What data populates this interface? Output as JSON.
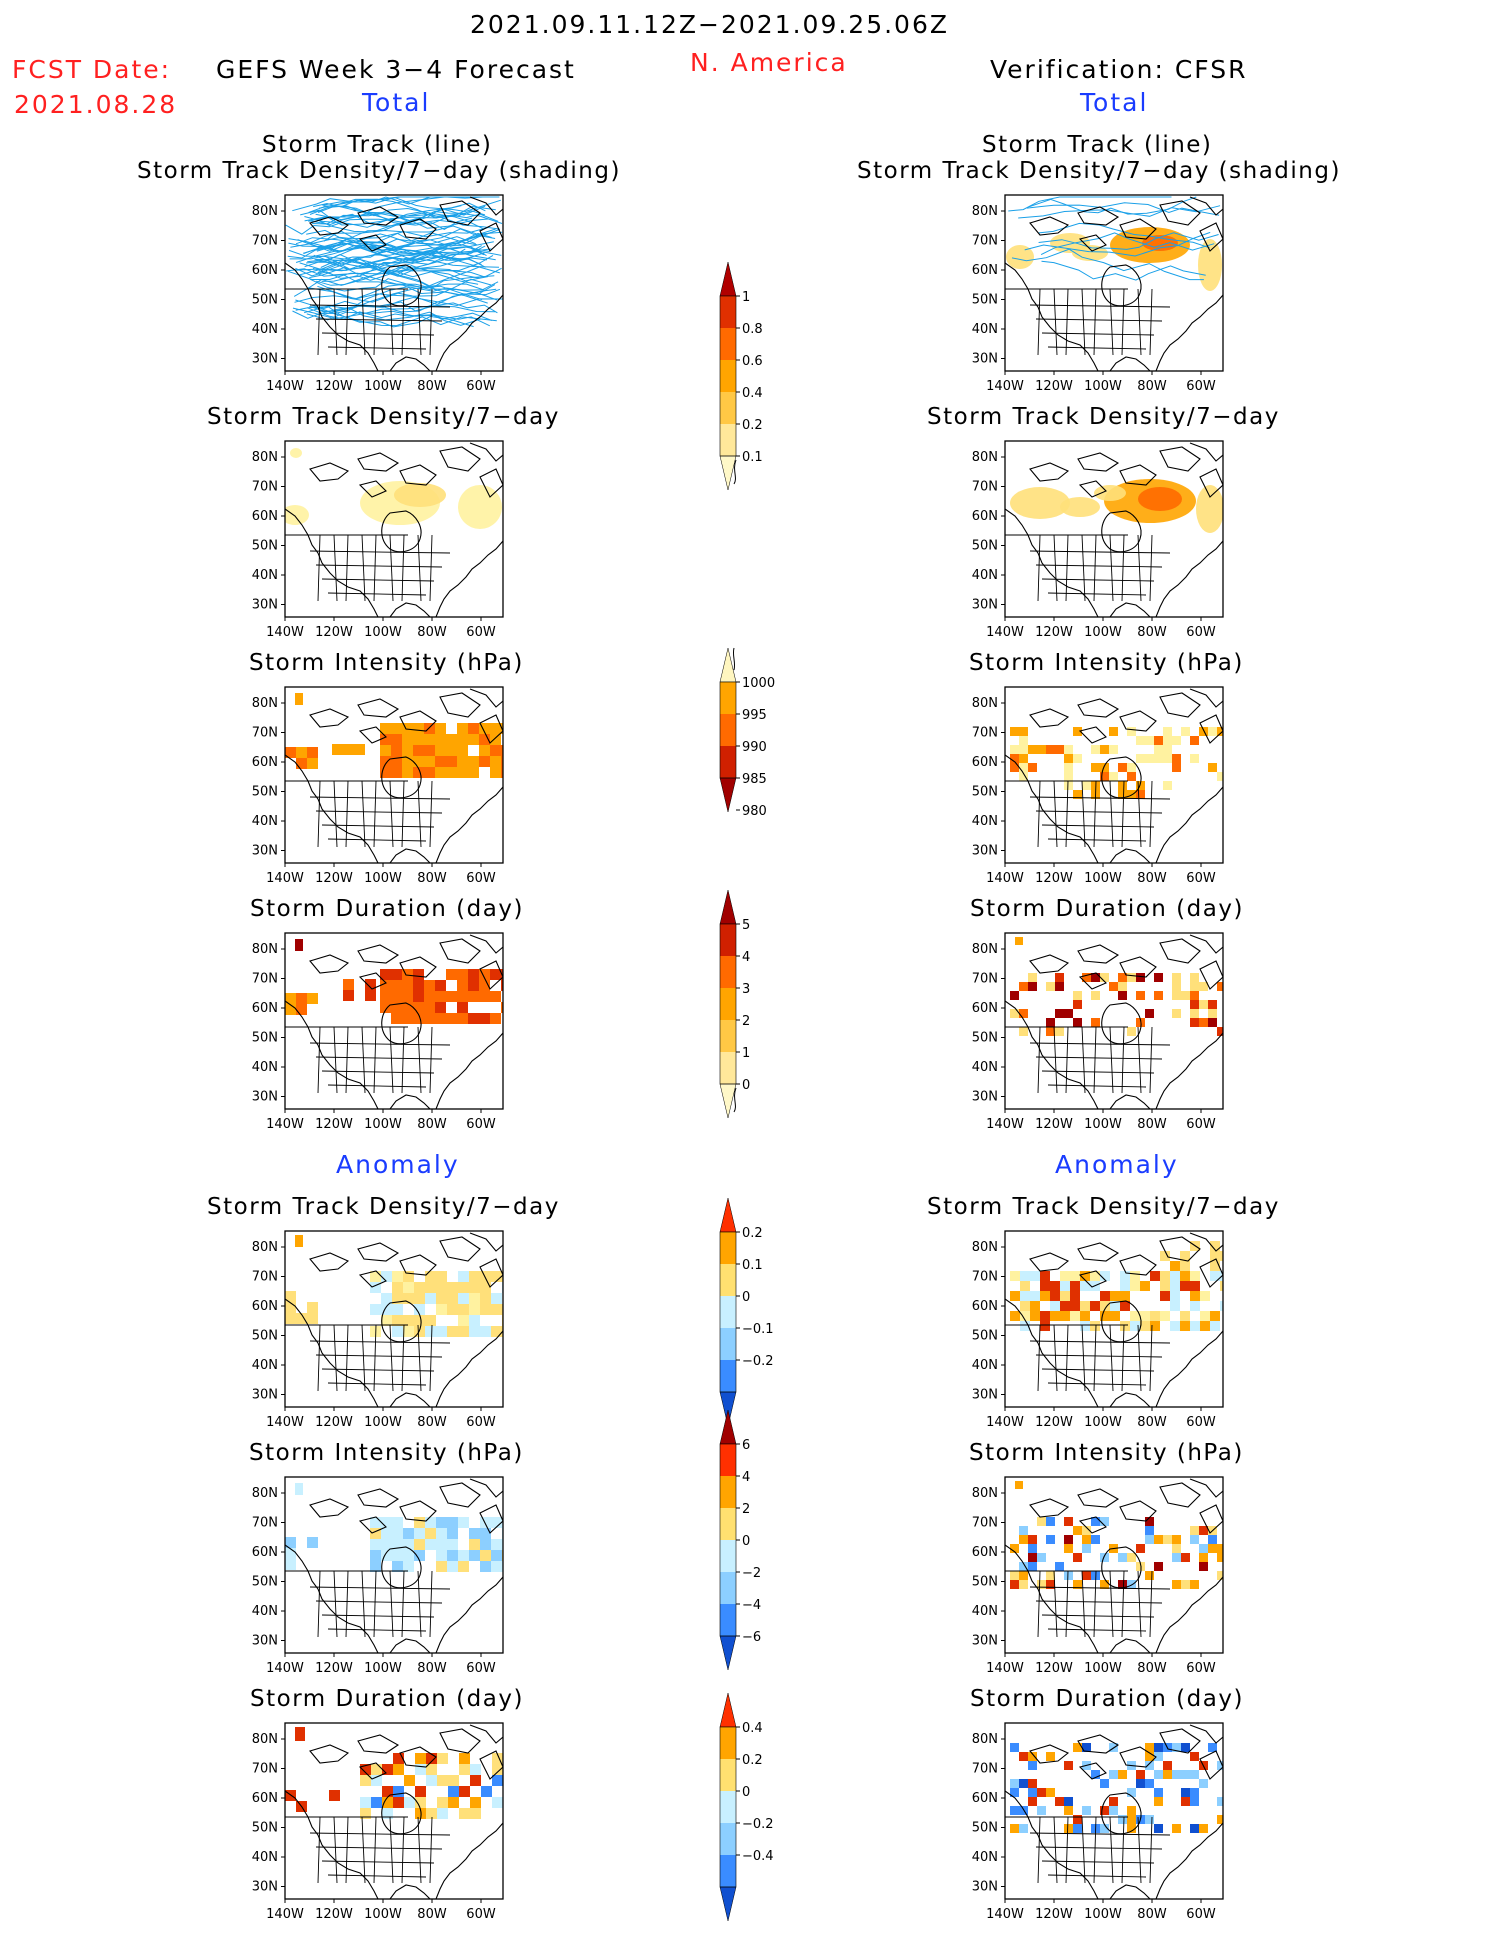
{
  "header": {
    "date_range": "2021.09.11.12Z−2021.09.25.06Z",
    "fcst_label": "FCST Date:",
    "fcst_date": "2021.08.28",
    "model": "GEFS Week 3−4 Forecast",
    "region": "N. America",
    "verification": "Verification: CFSR"
  },
  "sections": {
    "total_left": "Total",
    "total_right": "Total",
    "anomaly_left": "Anomaly",
    "anomaly_right": "Anomaly"
  },
  "panel_titles": {
    "track_line": "Storm Track (line)",
    "track_shading": "Storm Track Density/7−day (shading)",
    "density": "Storm Track Density/7−day",
    "intensity": "Storm Intensity (hPa)",
    "duration": "Storm Duration (day)"
  },
  "axes": {
    "lat_labels": [
      "80N",
      "70N",
      "60N",
      "50N",
      "40N",
      "30N"
    ],
    "lon_labels": [
      "140W",
      "120W",
      "100W",
      "80W",
      "60W"
    ]
  },
  "colorbars": {
    "density_total": {
      "labels": [
        "1",
        "0.8",
        "0.6",
        "0.4",
        "0.2",
        "0.1"
      ],
      "colors": [
        "#b00000",
        "#e03000",
        "#ff6a00",
        "#ffa500",
        "#ffc845",
        "#ffe89a",
        "#fff8c8"
      ]
    },
    "intensity_total": {
      "labels": [
        "1000",
        "995",
        "990",
        "985",
        "980"
      ],
      "colors": [
        "#fff6c0",
        "#ffa500",
        "#ff6a00",
        "#d02000",
        "#a00000"
      ]
    },
    "duration_total": {
      "labels": [
        "5",
        "4",
        "3",
        "2",
        "1",
        "0"
      ],
      "colors": [
        "#a00000",
        "#d02000",
        "#ff6a00",
        "#ffa500",
        "#ffc845",
        "#ffe89a",
        "#fff8c8"
      ]
    },
    "density_anom": {
      "labels": [
        "0.2",
        "0.1",
        "0",
        "−0.1",
        "−0.2"
      ],
      "colors": [
        "#ff3000",
        "#ffa500",
        "#ffe070",
        "#c8f0ff",
        "#8ccfff",
        "#3a8cff",
        "#1050d0"
      ]
    },
    "intensity_anom": {
      "labels": [
        "6",
        "4",
        "2",
        "0",
        "−2",
        "−4",
        "−6"
      ],
      "colors": [
        "#a00000",
        "#ff3000",
        "#ffa500",
        "#ffe070",
        "#c8f0ff",
        "#8ccfff",
        "#3a8cff",
        "#1050d0"
      ]
    },
    "duration_anom": {
      "labels": [
        "0.4",
        "0.2",
        "0",
        "−0.2",
        "−0.4"
      ],
      "colors": [
        "#ff3000",
        "#ffa500",
        "#ffe070",
        "#c8f0ff",
        "#8ccfff",
        "#3a8cff",
        "#1050d0"
      ]
    }
  }
}
